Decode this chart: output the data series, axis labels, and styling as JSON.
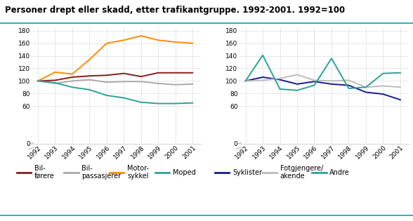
{
  "title": "Personer drept eller skadd, etter trafikantgruppe. 1992-2001. 1992=100",
  "years": [
    1992,
    1993,
    1994,
    1995,
    1996,
    1997,
    1998,
    1999,
    2000,
    2001
  ],
  "left_series": {
    "Bil-\nførere": [
      100,
      101,
      106,
      108,
      109,
      112,
      107,
      113,
      113,
      113
    ],
    "Bil-\npassasjerer": [
      100,
      96,
      100,
      102,
      98,
      99,
      99,
      96,
      94,
      95
    ],
    "Motor-\nsykkel": [
      100,
      114,
      111,
      134,
      160,
      165,
      172,
      165,
      162,
      160
    ],
    "Moped": [
      100,
      97,
      90,
      86,
      77,
      73,
      66,
      64,
      64,
      65
    ]
  },
  "left_colors": {
    "Bil-\nførere": "#8B1A1A",
    "Bil-\npassasjerer": "#AAAAAA",
    "Motor-\nsykkel": "#FF8C00",
    "Moped": "#2AA198"
  },
  "right_series": {
    "Syklister": [
      100,
      106,
      102,
      95,
      99,
      95,
      93,
      82,
      79,
      70
    ],
    "Fotgjengere/\nakende": [
      100,
      101,
      104,
      110,
      101,
      100,
      101,
      90,
      92,
      90
    ],
    "Andre": [
      100,
      141,
      87,
      85,
      93,
      136,
      88,
      90,
      112,
      113
    ]
  },
  "right_colors": {
    "Syklister": "#1A1A8B",
    "Fotgjengere/\nakende": "#BBBBBB",
    "Andre": "#2AA198"
  },
  "yticks": [
    0,
    60,
    80,
    100,
    120,
    140,
    160,
    180
  ],
  "background_color": "#FFFFFF",
  "grid_color": "#DDDDDD",
  "teal_line_color": "#00AAAA",
  "title_fontsize": 8.5,
  "tick_fontsize": 6.5,
  "legend_fontsize": 7.0,
  "left_legend_items": [
    "Bil-\nførere",
    "Bil-\npassasjerer",
    "Motor-\nsykkel",
    "Moped"
  ],
  "right_legend_items": [
    "Syklister",
    "Fotgjengere/\nakende",
    "Andre"
  ]
}
